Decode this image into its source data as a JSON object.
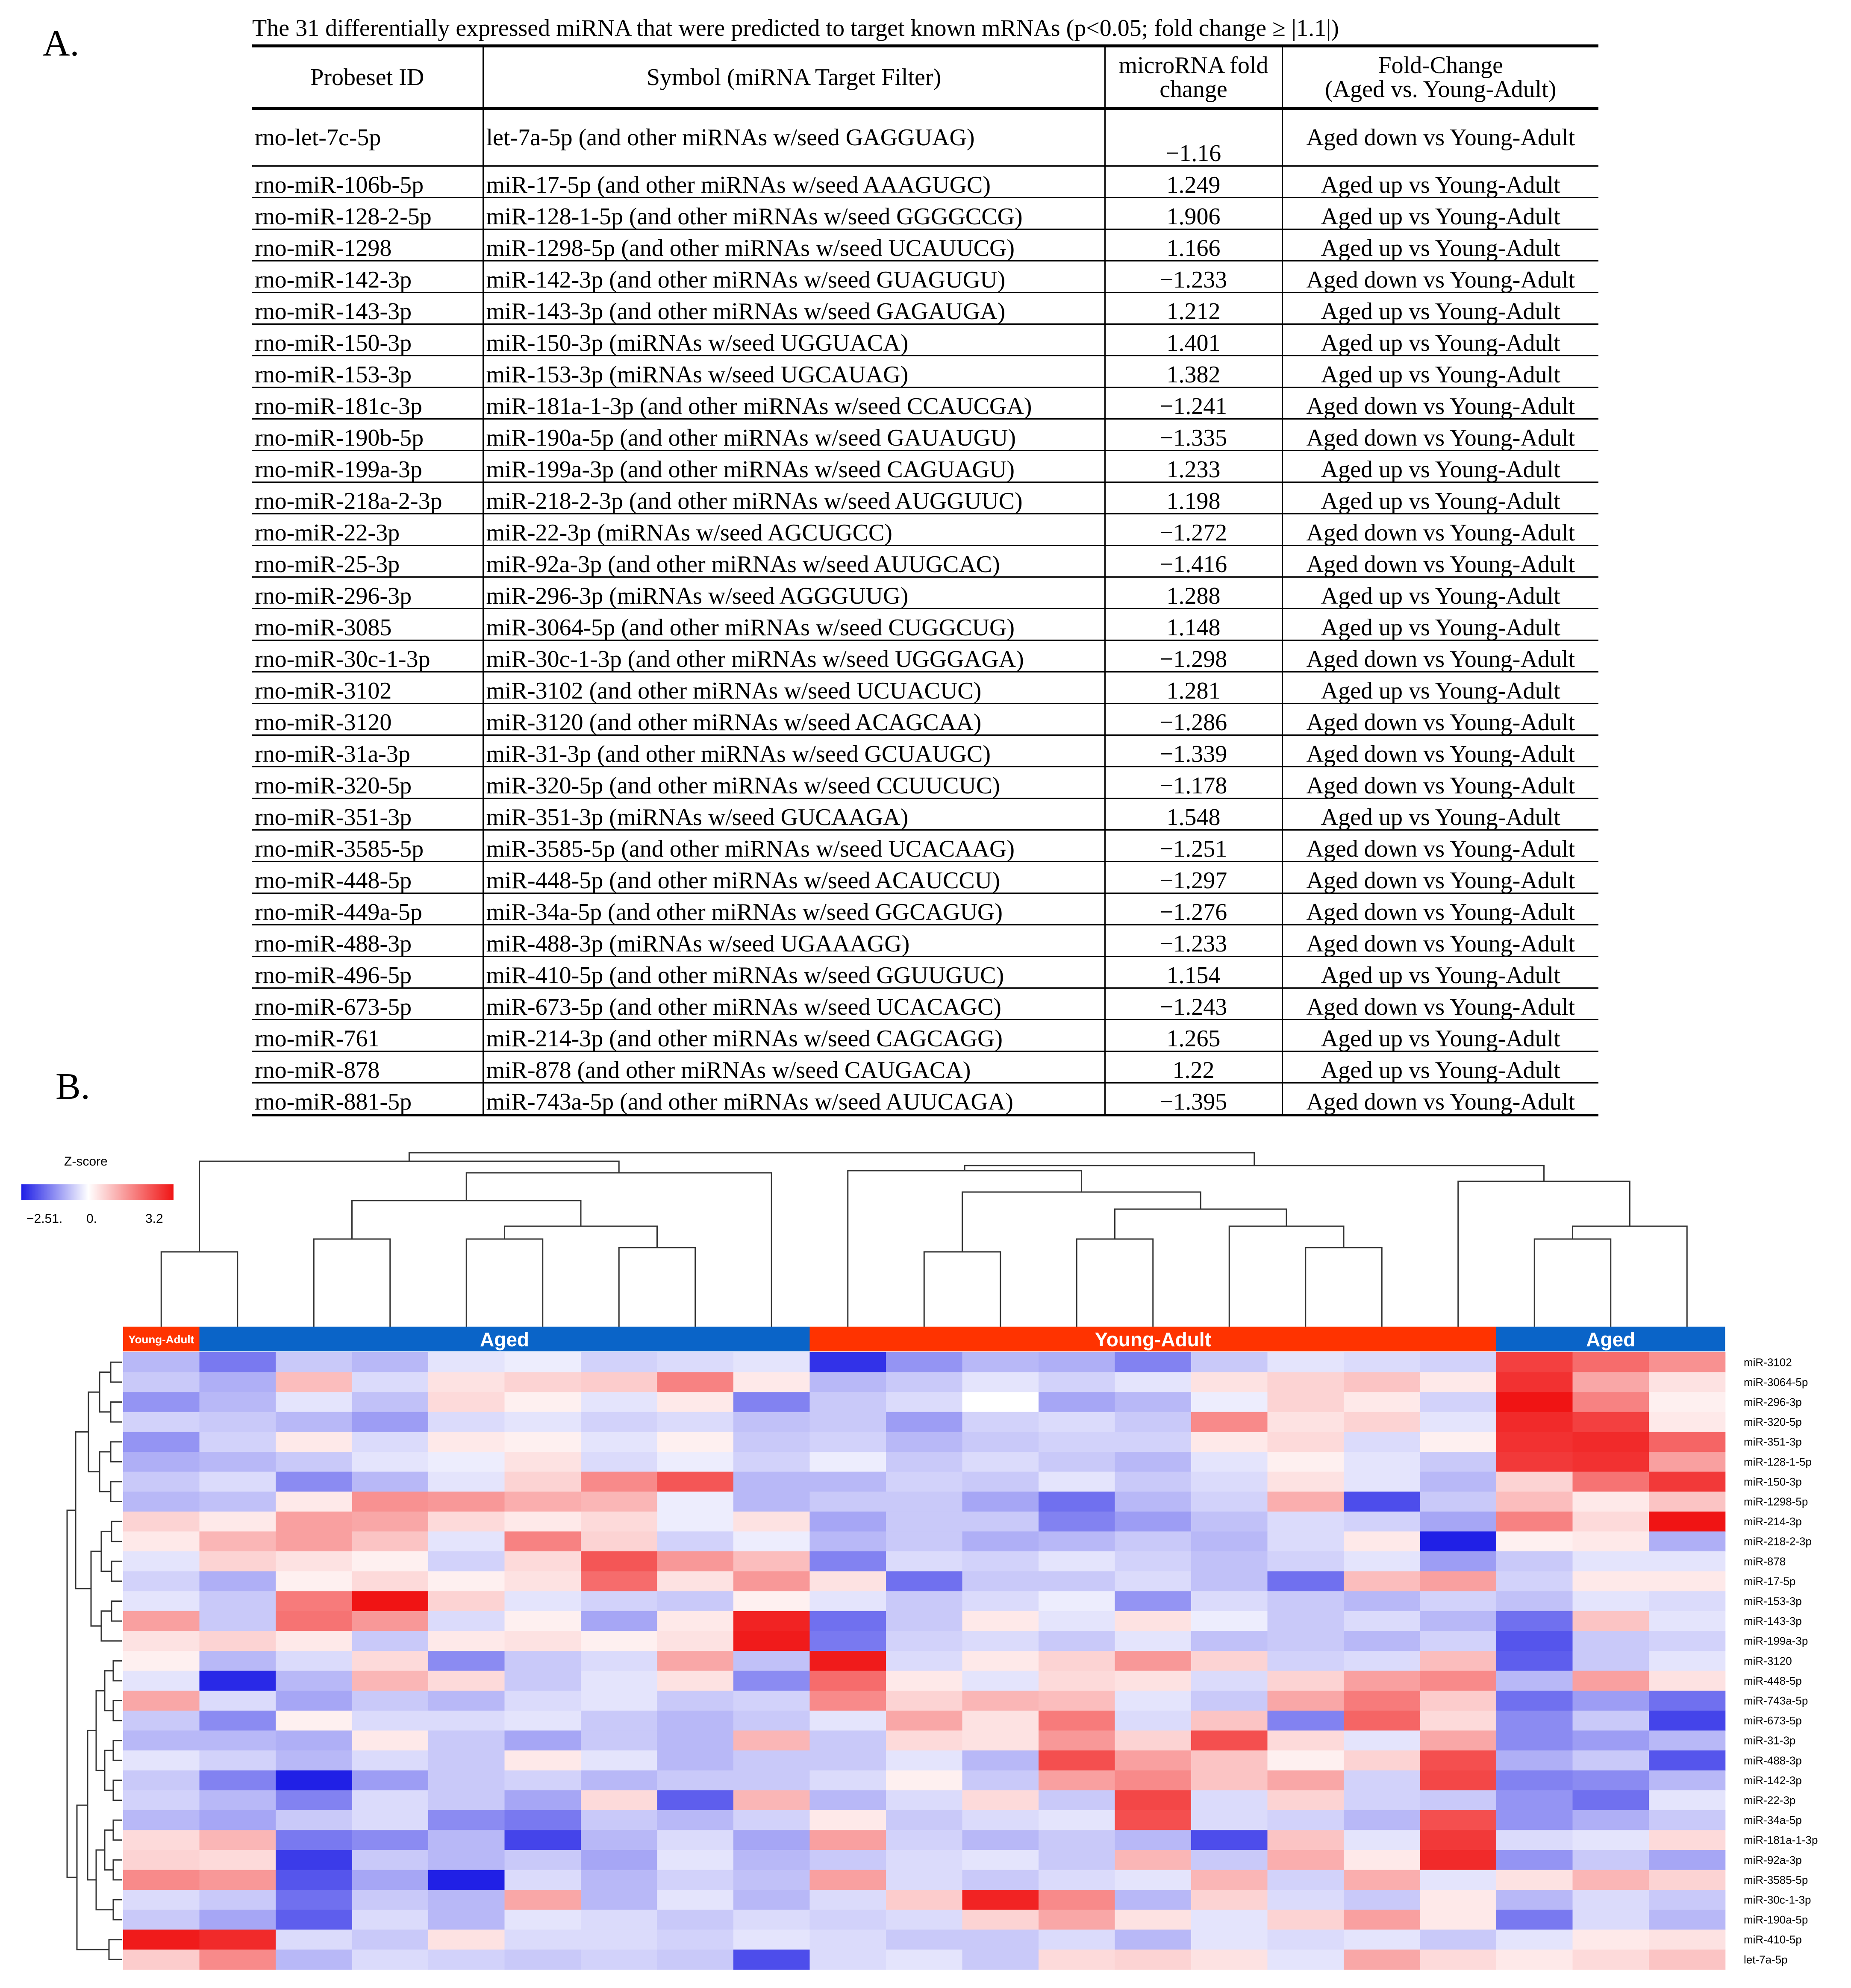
{
  "panel_a_label": "A.",
  "panel_b_label": "B.",
  "table": {
    "caption": "The 31 differentially expressed  miRNA that were predicted to target known mRNAs (p<0.05; fold change ≥ |1.1|)",
    "headers": {
      "probeset": "Probeset ID",
      "symbol": "Symbol (miRNA Target Filter)",
      "fold_line1": "microRNA fold",
      "fold_line2": "change",
      "direction_line1": "Fold-Change",
      "direction_line2": "(Aged vs. Young-Adult)"
    },
    "rows": [
      {
        "probeset": "rno-let-7c-5p",
        "symbol": "let-7a-5p (and other miRNAs w/seed GAGGUAG)",
        "fold": "−1.16",
        "direction": "Aged down vs Young-Adult"
      },
      {
        "probeset": "rno-miR-106b-5p",
        "symbol": "miR-17-5p (and other miRNAs w/seed AAAGUGC)",
        "fold": "1.249",
        "direction": "Aged up vs Young-Adult"
      },
      {
        "probeset": "rno-miR-128-2-5p",
        "symbol": "miR-128-1-5p (and other miRNAs w/seed GGGGCCG)",
        "fold": "1.906",
        "direction": "Aged up vs Young-Adult"
      },
      {
        "probeset": "rno-miR-1298",
        "symbol": "miR-1298-5p (and other miRNAs w/seed UCAUUCG)",
        "fold": "1.166",
        "direction": "Aged up vs Young-Adult"
      },
      {
        "probeset": "rno-miR-142-3p",
        "symbol": "miR-142-3p (and other miRNAs w/seed GUAGUGU)",
        "fold": "−1.233",
        "direction": "Aged down vs Young-Adult"
      },
      {
        "probeset": "rno-miR-143-3p",
        "symbol": "miR-143-3p (and other miRNAs w/seed GAGAUGA)",
        "fold": "1.212",
        "direction": "Aged up vs Young-Adult"
      },
      {
        "probeset": "rno-miR-150-3p",
        "symbol": "miR-150-3p (miRNAs w/seed UGGUACA)",
        "fold": "1.401",
        "direction": "Aged up vs Young-Adult"
      },
      {
        "probeset": "rno-miR-153-3p",
        "symbol": "miR-153-3p (miRNAs w/seed UGCAUAG)",
        "fold": "1.382",
        "direction": "Aged up vs Young-Adult"
      },
      {
        "probeset": "rno-miR-181c-3p",
        "symbol": "miR-181a-1-3p (and other miRNAs w/seed CCAUCGA)",
        "fold": "−1.241",
        "direction": "Aged down vs Young-Adult"
      },
      {
        "probeset": "rno-miR-190b-5p",
        "symbol": "miR-190a-5p (and other miRNAs w/seed GAUAUGU)",
        "fold": "−1.335",
        "direction": "Aged down vs Young-Adult"
      },
      {
        "probeset": "rno-miR-199a-3p",
        "symbol": "miR-199a-3p (and other miRNAs w/seed CAGUAGU)",
        "fold": "1.233",
        "direction": "Aged up vs Young-Adult"
      },
      {
        "probeset": "rno-miR-218a-2-3p",
        "symbol": "miR-218-2-3p (and other miRNAs w/seed AUGGUUC)",
        "fold": "1.198",
        "direction": "Aged up vs Young-Adult"
      },
      {
        "probeset": "rno-miR-22-3p",
        "symbol": "miR-22-3p (miRNAs w/seed AGCUGCC)",
        "fold": "−1.272",
        "direction": "Aged down vs Young-Adult"
      },
      {
        "probeset": "rno-miR-25-3p",
        "symbol": "miR-92a-3p (and other miRNAs w/seed AUUGCAC)",
        "fold": "−1.416",
        "direction": "Aged down vs Young-Adult"
      },
      {
        "probeset": "rno-miR-296-3p",
        "symbol": "miR-296-3p (miRNAs w/seed AGGGUUG)",
        "fold": "1.288",
        "direction": "Aged up vs Young-Adult"
      },
      {
        "probeset": "rno-miR-3085",
        "symbol": "miR-3064-5p (and other miRNAs w/seed CUGGCUG)",
        "fold": "1.148",
        "direction": "Aged up vs Young-Adult"
      },
      {
        "probeset": "rno-miR-30c-1-3p",
        "symbol": "miR-30c-1-3p (and other miRNAs w/seed UGGGAGA)",
        "fold": "−1.298",
        "direction": "Aged down vs Young-Adult"
      },
      {
        "probeset": "rno-miR-3102",
        "symbol": "miR-3102 (and other miRNAs w/seed UCUACUC)",
        "fold": "1.281",
        "direction": "Aged up vs Young-Adult"
      },
      {
        "probeset": "rno-miR-3120",
        "symbol": "miR-3120 (and other miRNAs w/seed ACAGCAA)",
        "fold": "−1.286",
        "direction": "Aged down vs Young-Adult"
      },
      {
        "probeset": "rno-miR-31a-3p",
        "symbol": "miR-31-3p (and other miRNAs w/seed GCUAUGC)",
        "fold": "−1.339",
        "direction": "Aged down vs Young-Adult"
      },
      {
        "probeset": "rno-miR-320-5p",
        "symbol": "miR-320-5p (and other miRNAs w/seed CCUUCUC)",
        "fold": "−1.178",
        "direction": "Aged down vs Young-Adult"
      },
      {
        "probeset": "rno-miR-351-3p",
        "symbol": "miR-351-3p (miRNAs w/seed GUCAAGA)",
        "fold": "1.548",
        "direction": "Aged up vs Young-Adult"
      },
      {
        "probeset": "rno-miR-3585-5p",
        "symbol": "miR-3585-5p (and other miRNAs w/seed UCACAAG)",
        "fold": "−1.251",
        "direction": "Aged down vs Young-Adult"
      },
      {
        "probeset": "rno-miR-448-5p",
        "symbol": "miR-448-5p (and other miRNAs w/seed ACAUCCU)",
        "fold": "−1.297",
        "direction": "Aged down vs Young-Adult"
      },
      {
        "probeset": "rno-miR-449a-5p",
        "symbol": "miR-34a-5p (and other miRNAs w/seed GGCAGUG)",
        "fold": "−1.276",
        "direction": "Aged down vs Young-Adult"
      },
      {
        "probeset": "rno-miR-488-3p",
        "symbol": "miR-488-3p (miRNAs w/seed UGAAAGG)",
        "fold": "−1.233",
        "direction": "Aged down vs Young-Adult"
      },
      {
        "probeset": "rno-miR-496-5p",
        "symbol": "miR-410-5p (and other miRNAs w/seed GGUUGUC)",
        "fold": "1.154",
        "direction": "Aged up vs Young-Adult"
      },
      {
        "probeset": "rno-miR-673-5p",
        "symbol": "miR-673-5p (and other miRNAs w/seed UCACAGC)",
        "fold": "−1.243",
        "direction": "Aged down vs Young-Adult"
      },
      {
        "probeset": "rno-miR-761",
        "symbol": "miR-214-3p (and other miRNAs w/seed CAGCAGG)",
        "fold": "1.265",
        "direction": "Aged up vs Young-Adult"
      },
      {
        "probeset": "rno-miR-878",
        "symbol": "miR-878 (and other miRNAs w/seed CAUGACA)",
        "fold": "1.22",
        "direction": "Aged up vs Young-Adult"
      },
      {
        "probeset": "rno-miR-881-5p",
        "symbol": "miR-743a-5p (and other miRNAs w/seed AUUCAGA)",
        "fold": "−1.395",
        "direction": "Aged down vs Young-Adult"
      }
    ]
  },
  "chart_data": {
    "type": "heatmap",
    "title": "",
    "legend": {
      "title": "Z-score",
      "min_label": "−2.51.",
      "mid_label": "0.",
      "max_label": "3.2",
      "min": -2.51,
      "mid": 0,
      "max": 3.2,
      "colors": {
        "low": "#1f1fe6",
        "mid": "#ffffff",
        "high": "#f01414"
      }
    },
    "groups": [
      {
        "label": "Young-Adult",
        "n_columns": 1,
        "color": "#ff3300"
      },
      {
        "label": "Aged",
        "n_columns": 8,
        "color": "#0a64c8"
      },
      {
        "label": "Young-Adult",
        "n_columns": 9,
        "color": "#ff3300"
      },
      {
        "label": "Aged",
        "n_columns": 3,
        "color": "#0a64c8"
      }
    ],
    "row_labels": [
      "miR-3102",
      "miR-3064-5p",
      "miR-296-3p",
      "miR-320-5p",
      "miR-351-3p",
      "miR-128-1-5p",
      "miR-150-3p",
      "miR-1298-5p",
      "miR-214-3p",
      "miR-218-2-3p",
      "miR-878",
      "miR-17-5p",
      "miR-153-3p",
      "miR-143-3p",
      "miR-199a-3p",
      "miR-3120",
      "miR-448-5p",
      "miR-743a-5p",
      "miR-673-5p",
      "miR-31-3p",
      "miR-488-3p",
      "miR-142-3p",
      "miR-22-3p",
      "miR-34a-5p",
      "miR-181a-1-3p",
      "miR-92a-3p",
      "miR-3585-5p",
      "miR-30c-1-3p",
      "miR-190a-5p",
      "miR-410-5p",
      "let-7a-5p"
    ],
    "values": [
      [
        -0.8,
        -1.5,
        -0.6,
        -0.8,
        -0.3,
        -0.2,
        -0.5,
        -0.4,
        -0.3,
        -2.3,
        -1.2,
        -0.8,
        -0.9,
        -1.4,
        -0.6,
        -0.3,
        -0.4,
        -0.5,
        2.6,
        2.0,
        1.5
      ],
      [
        -0.6,
        -0.9,
        0.9,
        -0.4,
        0.4,
        0.6,
        0.7,
        1.7,
        0.3,
        -0.8,
        -0.6,
        -0.3,
        -0.5,
        -0.3,
        0.4,
        0.6,
        0.8,
        0.3,
        2.8,
        1.2,
        0.4
      ],
      [
        -1.2,
        -0.8,
        -0.3,
        -0.7,
        0.5,
        0.2,
        -0.3,
        0.3,
        -1.4,
        -0.6,
        -0.4,
        0.0,
        -1.0,
        -0.8,
        -0.2,
        0.6,
        0.3,
        -0.5,
        3.2,
        1.7,
        0.2
      ],
      [
        -0.5,
        -0.6,
        -0.8,
        -1.1,
        -0.4,
        -0.3,
        -0.5,
        -0.4,
        -0.7,
        -0.6,
        -1.1,
        -0.5,
        -0.4,
        -0.6,
        1.6,
        0.4,
        0.6,
        -0.3,
        2.9,
        2.6,
        0.3
      ],
      [
        -1.2,
        -0.5,
        0.3,
        -0.4,
        0.3,
        0.2,
        -0.3,
        0.2,
        -0.6,
        -0.5,
        -0.8,
        -0.6,
        -0.5,
        -0.5,
        0.3,
        0.5,
        -0.4,
        0.2,
        2.8,
        2.9,
        2.1
      ],
      [
        -0.9,
        -0.8,
        -0.6,
        -0.3,
        -0.2,
        0.4,
        -0.4,
        -0.2,
        -0.5,
        -0.2,
        -0.6,
        -0.4,
        -0.6,
        -0.8,
        -0.3,
        0.2,
        -0.3,
        -0.6,
        2.7,
        2.8,
        1.3
      ],
      [
        -0.6,
        -0.4,
        -1.3,
        -0.8,
        -0.3,
        0.6,
        1.6,
        2.3,
        -0.8,
        -0.8,
        -0.5,
        -0.6,
        -0.3,
        -0.6,
        -0.4,
        0.4,
        -0.3,
        -0.8,
        0.6,
        1.9,
        2.7
      ],
      [
        -0.8,
        -0.7,
        0.3,
        1.5,
        1.4,
        1.1,
        1.0,
        -0.2,
        -0.8,
        -0.6,
        -0.6,
        -1.0,
        -1.6,
        -0.8,
        -0.5,
        1.1,
        -2.0,
        -0.6,
        0.9,
        0.3,
        0.8
      ],
      [
        0.6,
        0.3,
        1.3,
        1.2,
        0.5,
        0.3,
        0.5,
        -0.2,
        0.4,
        -1.0,
        -0.6,
        -0.6,
        -1.4,
        -1.1,
        -0.7,
        -0.4,
        -0.5,
        -1.0,
        1.7,
        0.5,
        3.2
      ],
      [
        0.3,
        1.0,
        1.3,
        0.8,
        -0.3,
        1.7,
        0.6,
        -0.5,
        -0.2,
        -0.8,
        -0.6,
        -0.9,
        -0.8,
        -0.6,
        -0.8,
        -0.4,
        0.3,
        -2.5,
        0.2,
        0.3,
        -0.9
      ],
      [
        -0.3,
        0.6,
        0.4,
        0.2,
        -0.5,
        0.5,
        2.3,
        1.4,
        0.9,
        -1.4,
        -0.4,
        -0.5,
        -0.3,
        -0.5,
        -0.7,
        -0.5,
        -0.3,
        -1.1,
        -0.6,
        -0.3,
        -0.3
      ],
      [
        -0.5,
        -0.9,
        0.2,
        0.5,
        0.2,
        0.4,
        2.0,
        0.4,
        1.4,
        0.4,
        -1.6,
        -0.6,
        -0.6,
        -0.4,
        -0.7,
        -1.6,
        0.9,
        1.3,
        -0.5,
        0.3,
        0.3
      ],
      [
        -0.3,
        -0.6,
        1.8,
        3.2,
        0.6,
        -0.3,
        -0.5,
        -0.6,
        0.2,
        -0.3,
        -0.6,
        -0.4,
        -0.2,
        -1.2,
        -0.4,
        -0.6,
        -0.8,
        -0.5,
        -0.7,
        -0.3,
        -0.4
      ],
      [
        1.3,
        -0.6,
        1.9,
        1.4,
        -0.4,
        0.2,
        -1.0,
        0.3,
        3.0,
        -1.6,
        -0.6,
        0.3,
        -0.3,
        0.4,
        -0.2,
        -0.6,
        -0.4,
        -0.8,
        -1.6,
        0.8,
        -0.3
      ],
      [
        0.4,
        0.6,
        0.3,
        -0.6,
        0.3,
        0.4,
        0.2,
        0.4,
        3.1,
        -1.5,
        -0.5,
        -0.4,
        -0.6,
        -0.3,
        -0.7,
        -0.6,
        -0.8,
        -0.5,
        -1.9,
        -0.6,
        -0.5
      ],
      [
        0.2,
        -0.8,
        -0.4,
        0.5,
        -1.3,
        -0.6,
        -0.4,
        1.2,
        -0.7,
        3.1,
        -0.4,
        0.3,
        0.6,
        1.4,
        0.6,
        -0.5,
        -0.4,
        0.9,
        -1.8,
        -0.6,
        -0.3
      ],
      [
        -0.3,
        -2.4,
        -0.8,
        1.0,
        0.5,
        -0.6,
        -0.3,
        0.4,
        -1.3,
        2.0,
        0.3,
        -0.3,
        0.5,
        0.4,
        -0.4,
        0.6,
        1.3,
        1.6,
        -0.8,
        1.3,
        0.4
      ],
      [
        1.2,
        -0.4,
        -1.0,
        -0.6,
        -0.8,
        -0.4,
        -0.3,
        -0.6,
        -0.5,
        1.6,
        0.6,
        1.0,
        0.9,
        -0.3,
        -0.6,
        1.2,
        1.8,
        0.7,
        -1.6,
        -1.1,
        -1.6
      ],
      [
        -0.6,
        -1.3,
        0.2,
        -0.4,
        -0.4,
        -0.3,
        -0.6,
        -0.8,
        -0.6,
        -0.3,
        1.2,
        0.4,
        1.8,
        -0.4,
        0.8,
        -1.4,
        2.1,
        0.5,
        -1.3,
        -0.6,
        -2.1
      ],
      [
        -0.8,
        -0.8,
        -0.9,
        0.3,
        -0.6,
        -1.0,
        -0.6,
        -0.8,
        1.0,
        -0.6,
        0.5,
        0.4,
        1.4,
        0.6,
        2.4,
        0.5,
        -0.3,
        1.2,
        -1.3,
        -1.1,
        -0.8
      ],
      [
        -0.3,
        -0.5,
        -0.8,
        -0.4,
        -0.6,
        0.3,
        -0.3,
        -0.8,
        -0.6,
        -0.6,
        -0.3,
        -0.8,
        2.4,
        1.3,
        0.8,
        0.2,
        0.6,
        2.4,
        -0.9,
        -0.6,
        -1.9
      ],
      [
        -0.6,
        -1.4,
        -2.5,
        -1.1,
        -0.6,
        -0.5,
        -0.8,
        -0.6,
        -0.6,
        -0.4,
        0.2,
        -0.6,
        1.3,
        1.6,
        0.8,
        1.2,
        -0.5,
        2.5,
        -1.4,
        -1.3,
        -0.8
      ],
      [
        -0.5,
        -0.8,
        -1.4,
        -0.4,
        -0.6,
        -1.0,
        0.5,
        -1.8,
        1.0,
        -0.8,
        -0.4,
        0.5,
        -0.6,
        2.5,
        -0.4,
        0.6,
        -0.5,
        -0.6,
        -1.2,
        -1.6,
        -0.3
      ],
      [
        -0.8,
        -1.0,
        -0.6,
        -0.4,
        -1.3,
        -1.5,
        -0.6,
        -0.8,
        -0.5,
        0.3,
        -0.6,
        -0.4,
        -0.3,
        2.4,
        -0.4,
        -0.5,
        -0.8,
        2.4,
        -1.2,
        -0.9,
        -0.6
      ],
      [
        0.5,
        1.0,
        -1.5,
        -1.3,
        -0.8,
        -2.1,
        -0.8,
        -0.4,
        -1.0,
        1.3,
        -0.5,
        -0.8,
        -0.6,
        -0.8,
        -2.0,
        0.8,
        -0.3,
        2.7,
        -0.4,
        -0.3,
        0.5
      ],
      [
        0.6,
        0.5,
        -2.2,
        -0.6,
        -0.8,
        -0.6,
        -1.0,
        -0.3,
        -0.8,
        -0.6,
        -0.4,
        -0.3,
        -0.6,
        1.0,
        -0.6,
        1.1,
        0.3,
        2.9,
        -1.2,
        -0.6,
        -1.0
      ],
      [
        1.6,
        1.4,
        -1.9,
        -1.0,
        -2.5,
        -0.4,
        -0.8,
        -0.5,
        -0.7,
        1.3,
        -0.4,
        -0.6,
        -0.4,
        -0.3,
        1.0,
        -0.5,
        1.1,
        -0.3,
        0.4,
        1.0,
        0.6
      ],
      [
        -0.4,
        -0.6,
        -1.6,
        -0.6,
        -0.8,
        1.2,
        -0.8,
        -0.3,
        -0.8,
        -0.4,
        0.7,
        3.0,
        1.6,
        -0.8,
        0.6,
        -0.4,
        -0.6,
        0.3,
        -0.8,
        -0.4,
        -0.6
      ],
      [
        -0.6,
        -1.0,
        -1.8,
        -0.4,
        -0.8,
        -0.3,
        -0.4,
        -0.6,
        -0.4,
        -0.5,
        -0.4,
        0.6,
        1.2,
        0.4,
        -0.3,
        0.6,
        1.3,
        0.3,
        -1.5,
        -0.4,
        -0.8
      ],
      [
        3.1,
        2.9,
        -0.4,
        -0.6,
        0.4,
        -0.4,
        -0.4,
        -0.5,
        -0.3,
        -0.4,
        -0.6,
        -0.6,
        -0.4,
        -0.8,
        -0.3,
        -0.4,
        -0.3,
        -0.6,
        -0.3,
        0.3,
        0.4
      ],
      [
        0.7,
        1.6,
        -0.8,
        -0.4,
        -0.5,
        -0.6,
        -0.5,
        -0.6,
        -2.0,
        -0.4,
        -0.3,
        -0.6,
        0.5,
        0.6,
        0.4,
        -0.3,
        1.2,
        0.5,
        0.3,
        0.5,
        0.8
      ]
    ]
  }
}
